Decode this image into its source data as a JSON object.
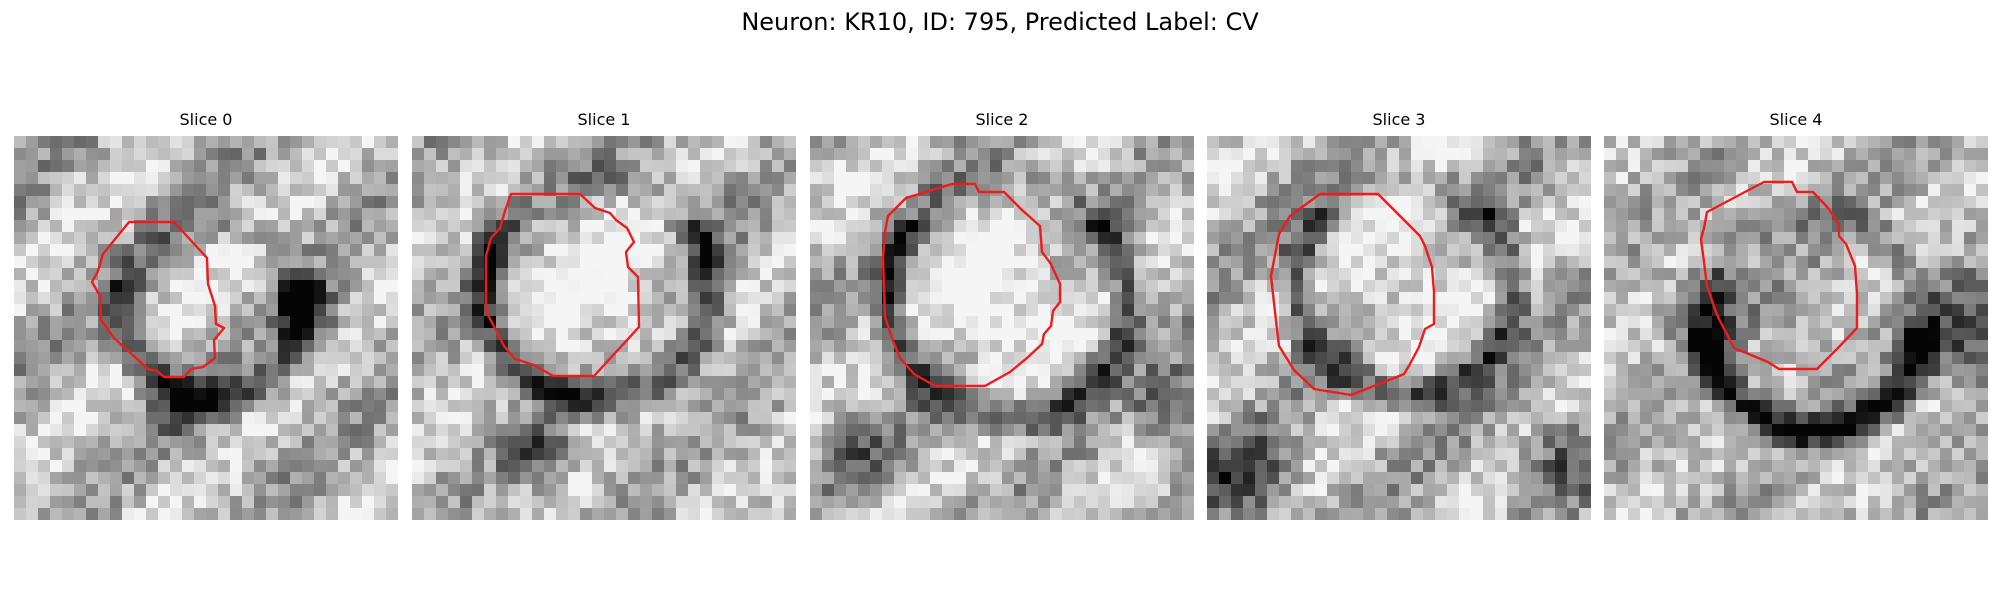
{
  "figure": {
    "title": "Neuron: KR10, ID: 795, Predicted Label: CV"
  },
  "colors": {
    "contour": "#ee1c1c",
    "background": "#ffffff"
  },
  "panels": [
    {
      "title": "Slice 0"
    },
    {
      "title": "Slice 1"
    },
    {
      "title": "Slice 2"
    },
    {
      "title": "Slice 3"
    },
    {
      "title": "Slice 4"
    }
  ]
}
